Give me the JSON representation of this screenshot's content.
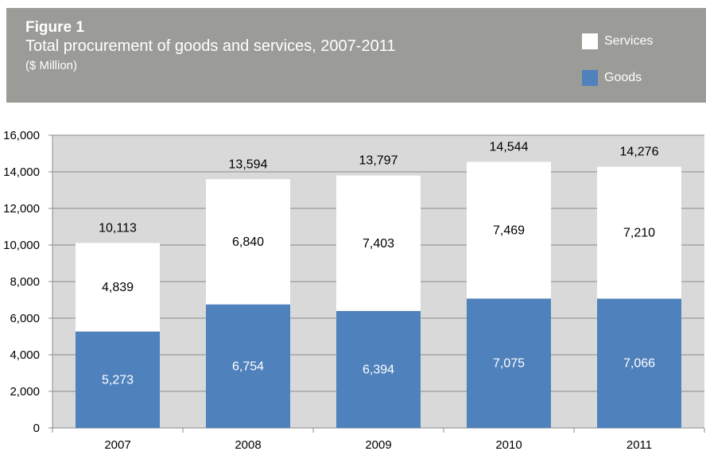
{
  "header": {
    "figure_label": "Figure 1",
    "title": "Total procurement of goods and services, 2007-2011",
    "subtitle": "($ Million)"
  },
  "legend": [
    {
      "label": "Services",
      "color": "#ffffff"
    },
    {
      "label": "Goods",
      "color": "#4f81bd"
    }
  ],
  "chart_data": {
    "type": "bar",
    "stacked": true,
    "title": "Total procurement of goods and services, 2007-2011",
    "categories": [
      "2007",
      "2008",
      "2009",
      "2010",
      "2011"
    ],
    "series": [
      {
        "name": "Goods",
        "values": [
          5273,
          6754,
          6394,
          7075,
          7066
        ],
        "color": "#4f81bd"
      },
      {
        "name": "Services",
        "values": [
          4839,
          6840,
          7403,
          7469,
          7210
        ],
        "color": "#ffffff"
      }
    ],
    "totals": [
      10113,
      13594,
      13797,
      14544,
      14276
    ],
    "value_labels": {
      "goods": [
        "5,273",
        "6,754",
        "6,394",
        "7,075",
        "7,066"
      ],
      "services": [
        "4,839",
        "6,840",
        "7,403",
        "7,469",
        "7,210"
      ],
      "totals": [
        "10,113",
        "13,594",
        "13,797",
        "14,544",
        "14,276"
      ]
    },
    "y_ticks": [
      0,
      2000,
      4000,
      6000,
      8000,
      10000,
      12000,
      14000,
      16000
    ],
    "y_tick_labels": [
      "0",
      "2,000",
      "4,000",
      "6,000",
      "8,000",
      "10,000",
      "12,000",
      "14,000",
      "16,000"
    ],
    "ylim": [
      0,
      16000
    ],
    "grid": true,
    "plot_background": "#d9d9d9",
    "legend_position": "top-right"
  }
}
